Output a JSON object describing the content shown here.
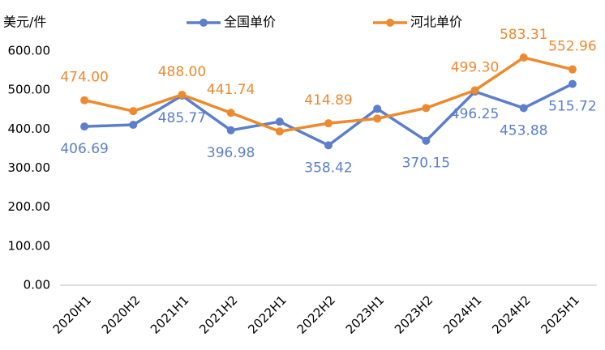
{
  "chart_data": {
    "type": "line",
    "y_label": "美元/件",
    "categories": [
      "2020H1",
      "2020H2",
      "2021H1",
      "2021H2",
      "2022H1",
      "2022H2",
      "2023H1",
      "2023H2",
      "2024H1",
      "2024H2",
      "2025H1"
    ],
    "series": [
      {
        "name": "全国单价",
        "color": "#5b7fcc",
        "values": [
          406.69,
          411,
          485.77,
          396.98,
          419,
          358.42,
          452,
          370.15,
          496.25,
          453.88,
          515.72
        ],
        "value_labels": [
          "406.69",
          null,
          "485.77",
          "396.98",
          null,
          "358.42",
          null,
          "370.15",
          "496.25",
          "453.88",
          "515.72"
        ]
      },
      {
        "name": "河北单价",
        "color": "#ed8a2e",
        "values": [
          474.0,
          446,
          488.0,
          441.74,
          394,
          414.89,
          427,
          454,
          499.3,
          583.31,
          552.96
        ],
        "value_labels": [
          "474.00",
          null,
          "488.00",
          "441.74",
          null,
          "414.89",
          null,
          null,
          "499.30",
          "583.31",
          "552.96"
        ]
      }
    ],
    "ylim": [
      0,
      600
    ],
    "yticks": [
      {
        "value": 0,
        "label": "0.00"
      },
      {
        "value": 100,
        "label": "100.00"
      },
      {
        "value": 200,
        "label": "200.00"
      },
      {
        "value": 300,
        "label": "300.00"
      },
      {
        "value": 400,
        "label": "400.00"
      },
      {
        "value": 500,
        "label": "500.00"
      },
      {
        "value": 600,
        "label": "600.00"
      }
    ],
    "legend": "top",
    "grid": false
  }
}
